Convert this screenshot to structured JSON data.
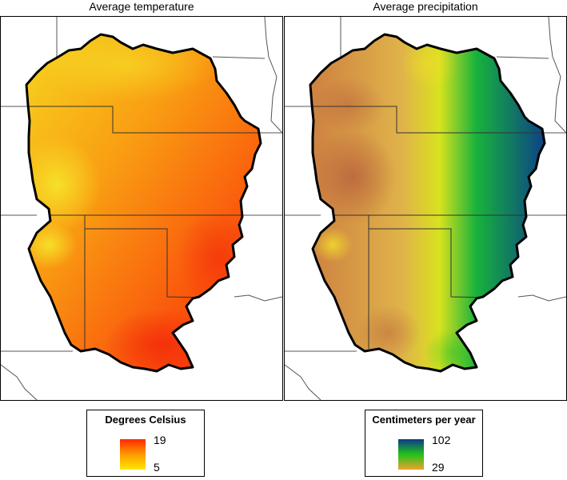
{
  "panels": [
    {
      "title": "Average temperature",
      "legend": {
        "title": "Degrees Celsius",
        "max_label": "19",
        "min_label": "5",
        "ramp_top_color": "#ff2a00",
        "ramp_mid_color": "#ff9a00",
        "ramp_bottom_color": "#ffe600"
      },
      "palette": {
        "warm": "#fa3b0a",
        "mid": "#f99d12",
        "cool": "#f6d820"
      }
    },
    {
      "title": "Average precipitation",
      "legend": {
        "title": "Centimeters per year",
        "max_label": "102",
        "min_label": "29",
        "ramp_top_color": "#0b3a8a",
        "ramp_mid_color": "#22c21b",
        "ramp_bottom_color": "#f0a22c"
      },
      "palette": {
        "dry": "#c8733e",
        "semi": "#e0b34a",
        "mid": "#d8e21e",
        "wet": "#18b23c",
        "wettest": "#0c3f88"
      }
    }
  ]
}
